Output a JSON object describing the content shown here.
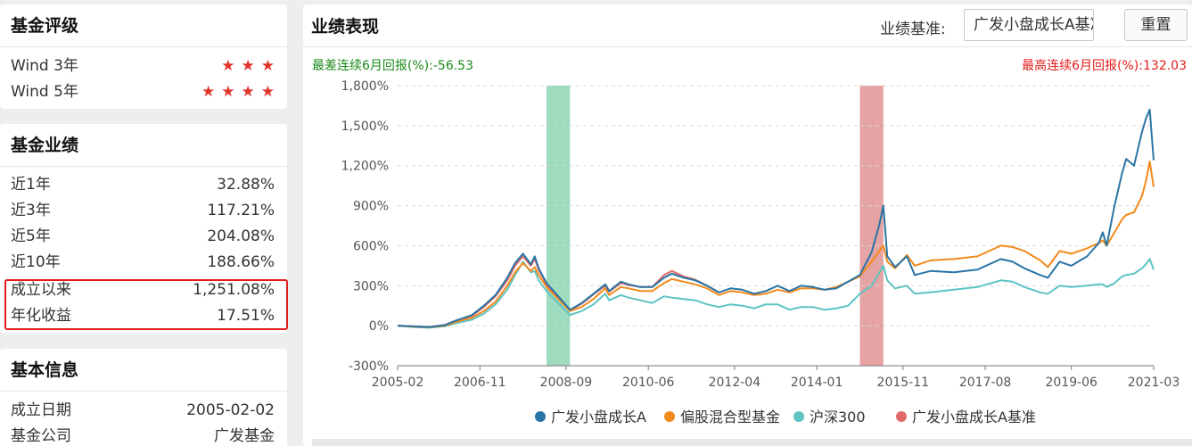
{
  "rating": {
    "title": "基金评级",
    "rows": [
      {
        "label": "Wind 3年",
        "stars": 3,
        "star_glyph": "★"
      },
      {
        "label": "Wind 5年",
        "stars": 4,
        "star_glyph": "★"
      }
    ]
  },
  "performance": {
    "title": "基金业绩",
    "rows": [
      {
        "label": "近1年",
        "value": "32.88%"
      },
      {
        "label": "近3年",
        "value": "117.21%"
      },
      {
        "label": "近5年",
        "value": "204.08%"
      },
      {
        "label": "近10年",
        "value": "188.66%"
      },
      {
        "label": "成立以来",
        "value": "1,251.08%"
      },
      {
        "label": "年化收益",
        "value": "17.51%"
      }
    ]
  },
  "basic": {
    "title": "基本信息",
    "rows": [
      {
        "label": "成立日期",
        "value": "2005-02-02"
      },
      {
        "label": "基金公司",
        "value": "广发基金"
      }
    ]
  },
  "chart_panel": {
    "title": "业绩表现",
    "benchmark_label": "业绩基准:",
    "benchmark_value": "广发小盘成长A基准",
    "reset_label": "重置",
    "worst_label": "最差连续6月回报(%):",
    "worst_value": "-56.53",
    "best_label": "最高连续6月回报(%):",
    "best_value": "132.03"
  },
  "colors": {
    "fund": "#2a74a5",
    "peer": "#f28a1b",
    "hs300": "#5ec3c3",
    "benchmark": "#e26a6a",
    "worst_band": "#9fdcbf",
    "best_band": "#e5a3a3",
    "highlight": "#e21b1b"
  },
  "chart_data": {
    "type": "line",
    "x_ticks": [
      "2005-02",
      "2006-11",
      "2008-09",
      "2010-06",
      "2012-04",
      "2014-01",
      "2015-11",
      "2017-08",
      "2019-06",
      "2021-03"
    ],
    "y_ticks": [
      "-300%",
      "0%",
      "300%",
      "600%",
      "900%",
      "1,200%",
      "1,500%",
      "1,800%"
    ],
    "ylim": [
      -300,
      1800
    ],
    "y_unit": "%",
    "grid": "dashed",
    "legend_position": "bottom",
    "bands": [
      {
        "kind": "worst",
        "start": "2008-04",
        "end": "2008-10"
      },
      {
        "kind": "best",
        "start": "2014-12",
        "end": "2015-06"
      }
    ],
    "series": [
      {
        "name": "广发小盘成长A",
        "key": "fund",
        "points": [
          [
            "2005-02",
            0
          ],
          [
            "2005-06",
            -5
          ],
          [
            "2005-10",
            -10
          ],
          [
            "2006-02",
            5
          ],
          [
            "2006-05",
            40
          ],
          [
            "2006-09",
            80
          ],
          [
            "2006-12",
            150
          ],
          [
            "2007-03",
            230
          ],
          [
            "2007-06",
            360
          ],
          [
            "2007-08",
            470
          ],
          [
            "2007-10",
            540
          ],
          [
            "2007-12",
            460
          ],
          [
            "2008-01",
            520
          ],
          [
            "2008-02",
            430
          ],
          [
            "2008-04",
            320
          ],
          [
            "2008-07",
            220
          ],
          [
            "2008-10",
            120
          ],
          [
            "2009-01",
            170
          ],
          [
            "2009-04",
            240
          ],
          [
            "2009-07",
            310
          ],
          [
            "2009-08",
            260
          ],
          [
            "2009-11",
            330
          ],
          [
            "2010-01",
            310
          ],
          [
            "2010-04",
            290
          ],
          [
            "2010-07",
            290
          ],
          [
            "2010-10",
            360
          ],
          [
            "2010-12",
            390
          ],
          [
            "2011-03",
            360
          ],
          [
            "2011-06",
            340
          ],
          [
            "2011-09",
            300
          ],
          [
            "2011-12",
            250
          ],
          [
            "2012-03",
            280
          ],
          [
            "2012-06",
            270
          ],
          [
            "2012-09",
            240
          ],
          [
            "2012-12",
            260
          ],
          [
            "2013-03",
            300
          ],
          [
            "2013-06",
            260
          ],
          [
            "2013-09",
            300
          ],
          [
            "2013-12",
            290
          ],
          [
            "2014-03",
            270
          ],
          [
            "2014-06",
            280
          ],
          [
            "2014-09",
            330
          ],
          [
            "2014-12",
            380
          ],
          [
            "2015-03",
            550
          ],
          [
            "2015-05",
            760
          ],
          [
            "2015-06",
            900
          ],
          [
            "2015-07",
            520
          ],
          [
            "2015-09",
            440
          ],
          [
            "2015-12",
            520
          ],
          [
            "2016-02",
            380
          ],
          [
            "2016-06",
            410
          ],
          [
            "2016-12",
            400
          ],
          [
            "2017-06",
            420
          ],
          [
            "2017-12",
            500
          ],
          [
            "2018-03",
            480
          ],
          [
            "2018-06",
            430
          ],
          [
            "2018-10",
            380
          ],
          [
            "2018-12",
            360
          ],
          [
            "2019-03",
            480
          ],
          [
            "2019-06",
            450
          ],
          [
            "2019-10",
            520
          ],
          [
            "2020-01",
            620
          ],
          [
            "2020-02",
            700
          ],
          [
            "2020-03",
            600
          ],
          [
            "2020-05",
            900
          ],
          [
            "2020-07",
            1150
          ],
          [
            "2020-08",
            1250
          ],
          [
            "2020-10",
            1200
          ],
          [
            "2020-12",
            1450
          ],
          [
            "2021-01",
            1550
          ],
          [
            "2021-02",
            1620
          ],
          [
            "2021-03",
            1240
          ]
        ]
      },
      {
        "name": "偏股混合型基金",
        "key": "peer",
        "points": [
          [
            "2005-02",
            0
          ],
          [
            "2005-06",
            -8
          ],
          [
            "2005-10",
            -12
          ],
          [
            "2006-02",
            0
          ],
          [
            "2006-05",
            30
          ],
          [
            "2006-09",
            60
          ],
          [
            "2006-12",
            110
          ],
          [
            "2007-03",
            180
          ],
          [
            "2007-06",
            300
          ],
          [
            "2007-08",
            400
          ],
          [
            "2007-10",
            470
          ],
          [
            "2007-12",
            410
          ],
          [
            "2008-01",
            440
          ],
          [
            "2008-02",
            380
          ],
          [
            "2008-04",
            290
          ],
          [
            "2008-07",
            200
          ],
          [
            "2008-10",
            110
          ],
          [
            "2009-01",
            140
          ],
          [
            "2009-04",
            200
          ],
          [
            "2009-07",
            280
          ],
          [
            "2009-08",
            230
          ],
          [
            "2009-11",
            290
          ],
          [
            "2010-01",
            280
          ],
          [
            "2010-04",
            260
          ],
          [
            "2010-07",
            260
          ],
          [
            "2010-10",
            320
          ],
          [
            "2010-12",
            350
          ],
          [
            "2011-03",
            330
          ],
          [
            "2011-06",
            310
          ],
          [
            "2011-09",
            280
          ],
          [
            "2011-12",
            230
          ],
          [
            "2012-03",
            260
          ],
          [
            "2012-06",
            250
          ],
          [
            "2012-09",
            230
          ],
          [
            "2012-12",
            240
          ],
          [
            "2013-03",
            270
          ],
          [
            "2013-06",
            250
          ],
          [
            "2013-09",
            280
          ],
          [
            "2013-12",
            280
          ],
          [
            "2014-03",
            270
          ],
          [
            "2014-06",
            290
          ],
          [
            "2014-09",
            330
          ],
          [
            "2014-12",
            370
          ],
          [
            "2015-03",
            480
          ],
          [
            "2015-05",
            560
          ],
          [
            "2015-06",
            600
          ],
          [
            "2015-07",
            480
          ],
          [
            "2015-09",
            430
          ],
          [
            "2015-12",
            530
          ],
          [
            "2016-02",
            450
          ],
          [
            "2016-06",
            490
          ],
          [
            "2016-12",
            500
          ],
          [
            "2017-06",
            520
          ],
          [
            "2017-12",
            600
          ],
          [
            "2018-03",
            590
          ],
          [
            "2018-06",
            560
          ],
          [
            "2018-10",
            490
          ],
          [
            "2018-12",
            440
          ],
          [
            "2019-03",
            560
          ],
          [
            "2019-06",
            540
          ],
          [
            "2019-10",
            580
          ],
          [
            "2020-01",
            620
          ],
          [
            "2020-02",
            640
          ],
          [
            "2020-03",
            600
          ],
          [
            "2020-05",
            700
          ],
          [
            "2020-07",
            800
          ],
          [
            "2020-08",
            830
          ],
          [
            "2020-10",
            850
          ],
          [
            "2020-12",
            970
          ],
          [
            "2021-01",
            1080
          ],
          [
            "2021-02",
            1230
          ],
          [
            "2021-03",
            1040
          ]
        ]
      },
      {
        "name": "沪深300",
        "key": "hs300",
        "points": [
          [
            "2005-02",
            0
          ],
          [
            "2005-06",
            -10
          ],
          [
            "2005-10",
            -15
          ],
          [
            "2006-02",
            -5
          ],
          [
            "2006-05",
            20
          ],
          [
            "2006-09",
            45
          ],
          [
            "2006-12",
            90
          ],
          [
            "2007-03",
            160
          ],
          [
            "2007-06",
            270
          ],
          [
            "2007-08",
            380
          ],
          [
            "2007-10",
            480
          ],
          [
            "2007-12",
            400
          ],
          [
            "2008-01",
            410
          ],
          [
            "2008-02",
            340
          ],
          [
            "2008-04",
            260
          ],
          [
            "2008-07",
            170
          ],
          [
            "2008-10",
            80
          ],
          [
            "2009-01",
            110
          ],
          [
            "2009-04",
            160
          ],
          [
            "2009-07",
            240
          ],
          [
            "2009-08",
            190
          ],
          [
            "2009-11",
            230
          ],
          [
            "2010-01",
            210
          ],
          [
            "2010-04",
            190
          ],
          [
            "2010-07",
            170
          ],
          [
            "2010-10",
            220
          ],
          [
            "2010-12",
            210
          ],
          [
            "2011-03",
            200
          ],
          [
            "2011-06",
            190
          ],
          [
            "2011-09",
            160
          ],
          [
            "2011-12",
            140
          ],
          [
            "2012-03",
            160
          ],
          [
            "2012-06",
            150
          ],
          [
            "2012-09",
            130
          ],
          [
            "2012-12",
            160
          ],
          [
            "2013-03",
            160
          ],
          [
            "2013-06",
            120
          ],
          [
            "2013-09",
            140
          ],
          [
            "2013-12",
            140
          ],
          [
            "2014-03",
            120
          ],
          [
            "2014-06",
            130
          ],
          [
            "2014-09",
            150
          ],
          [
            "2014-12",
            240
          ],
          [
            "2015-03",
            300
          ],
          [
            "2015-05",
            400
          ],
          [
            "2015-06",
            450
          ],
          [
            "2015-07",
            340
          ],
          [
            "2015-09",
            280
          ],
          [
            "2015-12",
            300
          ],
          [
            "2016-02",
            240
          ],
          [
            "2016-06",
            250
          ],
          [
            "2016-12",
            270
          ],
          [
            "2017-06",
            290
          ],
          [
            "2017-12",
            340
          ],
          [
            "2018-03",
            330
          ],
          [
            "2018-06",
            290
          ],
          [
            "2018-10",
            250
          ],
          [
            "2018-12",
            240
          ],
          [
            "2019-03",
            300
          ],
          [
            "2019-06",
            290
          ],
          [
            "2019-10",
            300
          ],
          [
            "2020-01",
            310
          ],
          [
            "2020-02",
            310
          ],
          [
            "2020-03",
            290
          ],
          [
            "2020-05",
            320
          ],
          [
            "2020-07",
            370
          ],
          [
            "2020-08",
            380
          ],
          [
            "2020-10",
            390
          ],
          [
            "2020-12",
            430
          ],
          [
            "2021-01",
            460
          ],
          [
            "2021-02",
            500
          ],
          [
            "2021-03",
            420
          ]
        ]
      },
      {
        "name": "广发小盘成长A基准",
        "key": "benchmark",
        "points": [
          [
            "2005-02",
            0
          ],
          [
            "2005-06",
            -5
          ],
          [
            "2005-10",
            -10
          ],
          [
            "2006-02",
            5
          ],
          [
            "2006-05",
            40
          ],
          [
            "2006-09",
            75
          ],
          [
            "2006-12",
            140
          ],
          [
            "2007-03",
            220
          ],
          [
            "2007-06",
            340
          ],
          [
            "2007-08",
            450
          ],
          [
            "2007-10",
            520
          ],
          [
            "2007-12",
            450
          ],
          [
            "2008-01",
            500
          ],
          [
            "2008-02",
            420
          ],
          [
            "2008-04",
            310
          ],
          [
            "2008-07",
            215
          ],
          [
            "2008-10",
            115
          ],
          [
            "2009-01",
            165
          ],
          [
            "2009-04",
            235
          ],
          [
            "2009-07",
            300
          ],
          [
            "2009-08",
            255
          ],
          [
            "2009-11",
            320
          ],
          [
            "2010-01",
            305
          ],
          [
            "2010-04",
            290
          ],
          [
            "2010-07",
            290
          ],
          [
            "2010-10",
            380
          ],
          [
            "2010-12",
            410
          ],
          [
            "2011-03",
            370
          ],
          [
            "2011-06",
            345
          ],
          [
            "2011-09",
            300
          ],
          [
            "2011-12",
            250
          ]
        ]
      }
    ]
  }
}
